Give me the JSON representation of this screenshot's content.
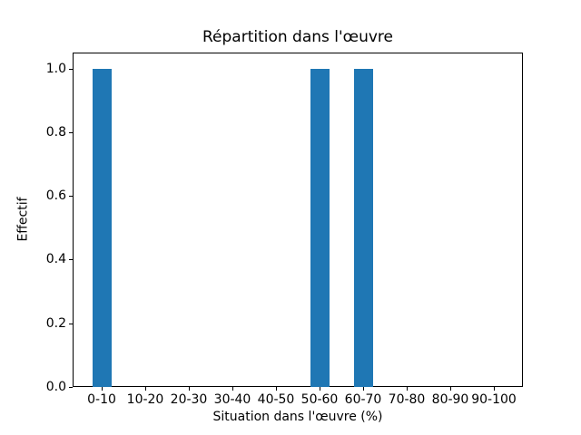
{
  "figure": {
    "background": "#ffffff",
    "text_color": "#000000"
  },
  "chart_data": {
    "type": "bar",
    "title": "Répartition dans l'œuvre",
    "xlabel": "Situation dans l'œuvre (%)",
    "ylabel": "Effectif",
    "categories": [
      "0-10",
      "10-20",
      "20-30",
      "30-40",
      "40-50",
      "50-60",
      "60-70",
      "70-80",
      "80-90",
      "90-100"
    ],
    "values": [
      1,
      0,
      0,
      0,
      0,
      1,
      1,
      0,
      0,
      0
    ],
    "ytick_labels": [
      "0.0",
      "0.2",
      "0.4",
      "0.6",
      "0.8",
      "1.0"
    ],
    "ytick_values": [
      0,
      0.2,
      0.4,
      0.6,
      0.8,
      1.0
    ],
    "ylim": [
      0,
      1.05
    ],
    "bar_color": "#1f77b4",
    "axis_color": "#000000",
    "grid": false,
    "legend": "none"
  }
}
